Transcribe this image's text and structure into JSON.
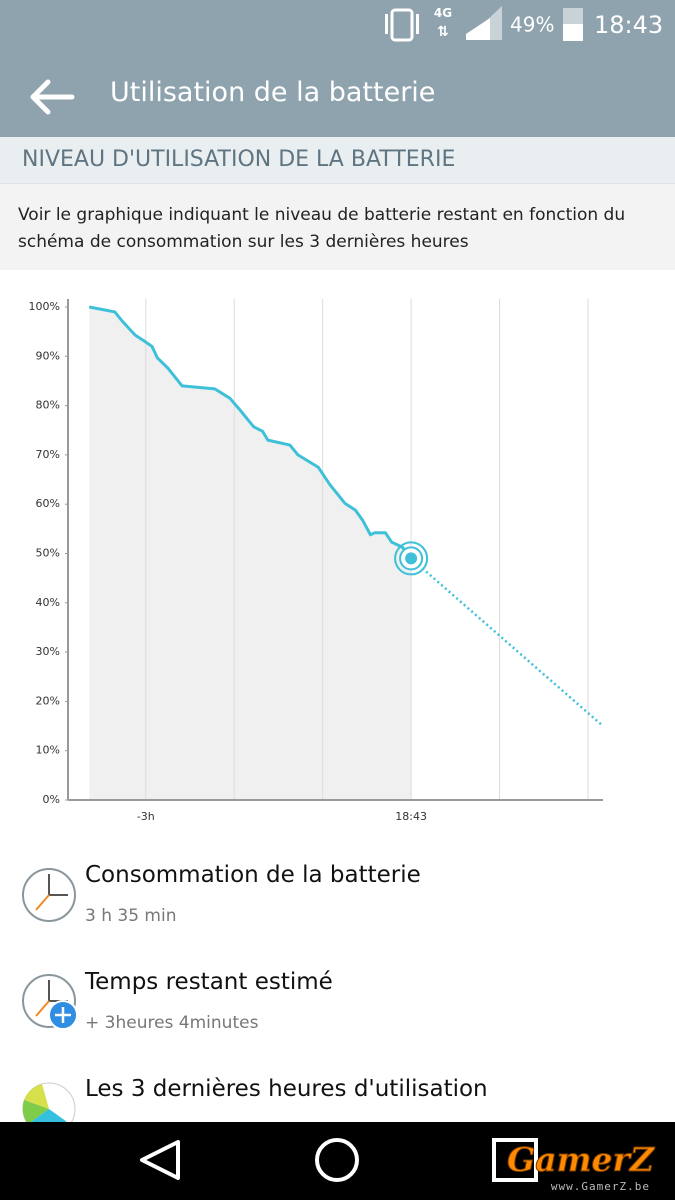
{
  "status_bar": {
    "network": "4G",
    "battery": "49%",
    "time": "18:43"
  },
  "app_bar": {
    "title": "Utilisation de la batterie"
  },
  "section": {
    "title": "NIVEAU D'UTILISATION DE LA BATTERIE",
    "description": "Voir le graphique indiquant le niveau de batterie restant en fonction du schéma de consommation sur les 3 dernières heures"
  },
  "chart_data": {
    "type": "line",
    "series": [
      {
        "color": "#3ec1d8",
        "style": "solid",
        "fill": true,
        "x": [
          -3.64,
          -3.35,
          -3.26,
          -3.12,
          -3.01,
          -2.93,
          -2.87,
          -2.75,
          -2.59,
          -2.22,
          -2.05,
          -1.93,
          -1.78,
          -1.68,
          -1.62,
          -1.37,
          -1.28,
          -1.05,
          -0.92,
          -0.75,
          -0.63,
          -0.55,
          -0.46,
          -0.41,
          -0.29,
          -0.22,
          -0.1,
          0
        ],
        "values": [
          100,
          99,
          97,
          94.3,
          93,
          92,
          89.7,
          87.6,
          84,
          83.4,
          81.5,
          79,
          75.7,
          74.8,
          73,
          72,
          70,
          67.5,
          64,
          60.2,
          58.8,
          56.8,
          53.8,
          54.2,
          54.2,
          52.3,
          51.3,
          49
        ]
      },
      {
        "color": "#3ec1d8",
        "style": "dotted",
        "fill": false,
        "x": [
          0,
          2.17
        ],
        "values": [
          49,
          15
        ]
      }
    ],
    "xlim": [
      -3.88,
      2.17
    ],
    "xticks": [
      {
        "value": -3,
        "label": "-3h"
      },
      {
        "value": -2,
        "label": null
      },
      {
        "value": -1,
        "label": null
      },
      {
        "value": 0,
        "label": "18:43"
      },
      {
        "value": 1,
        "label": null
      },
      {
        "value": 2,
        "label": null
      }
    ],
    "ylim": [
      0,
      100
    ],
    "yticks": [
      {
        "value": 0,
        "label": "0%"
      },
      {
        "value": 10,
        "label": "10%"
      },
      {
        "value": 20,
        "label": "20%"
      },
      {
        "value": 30,
        "label": "30%"
      },
      {
        "value": 40,
        "label": "40%"
      },
      {
        "value": 50,
        "label": "50%"
      },
      {
        "value": 60,
        "label": "60%"
      },
      {
        "value": 70,
        "label": "70%"
      },
      {
        "value": 80,
        "label": "80%"
      },
      {
        "value": 90,
        "label": "90%"
      },
      {
        "value": 100,
        "label": "100%"
      }
    ],
    "grid": true
  },
  "list": [
    {
      "title": "Consommation de la batterie",
      "subtitle": "3 h 35 min"
    },
    {
      "title": "Temps restant estimé",
      "subtitle": "+ 3heures 4minutes"
    },
    {
      "title": "Les 3 dernières heures d'utilisation"
    }
  ],
  "watermark": {
    "text": "GamerZ",
    "url": "www.GamerZ.be"
  }
}
